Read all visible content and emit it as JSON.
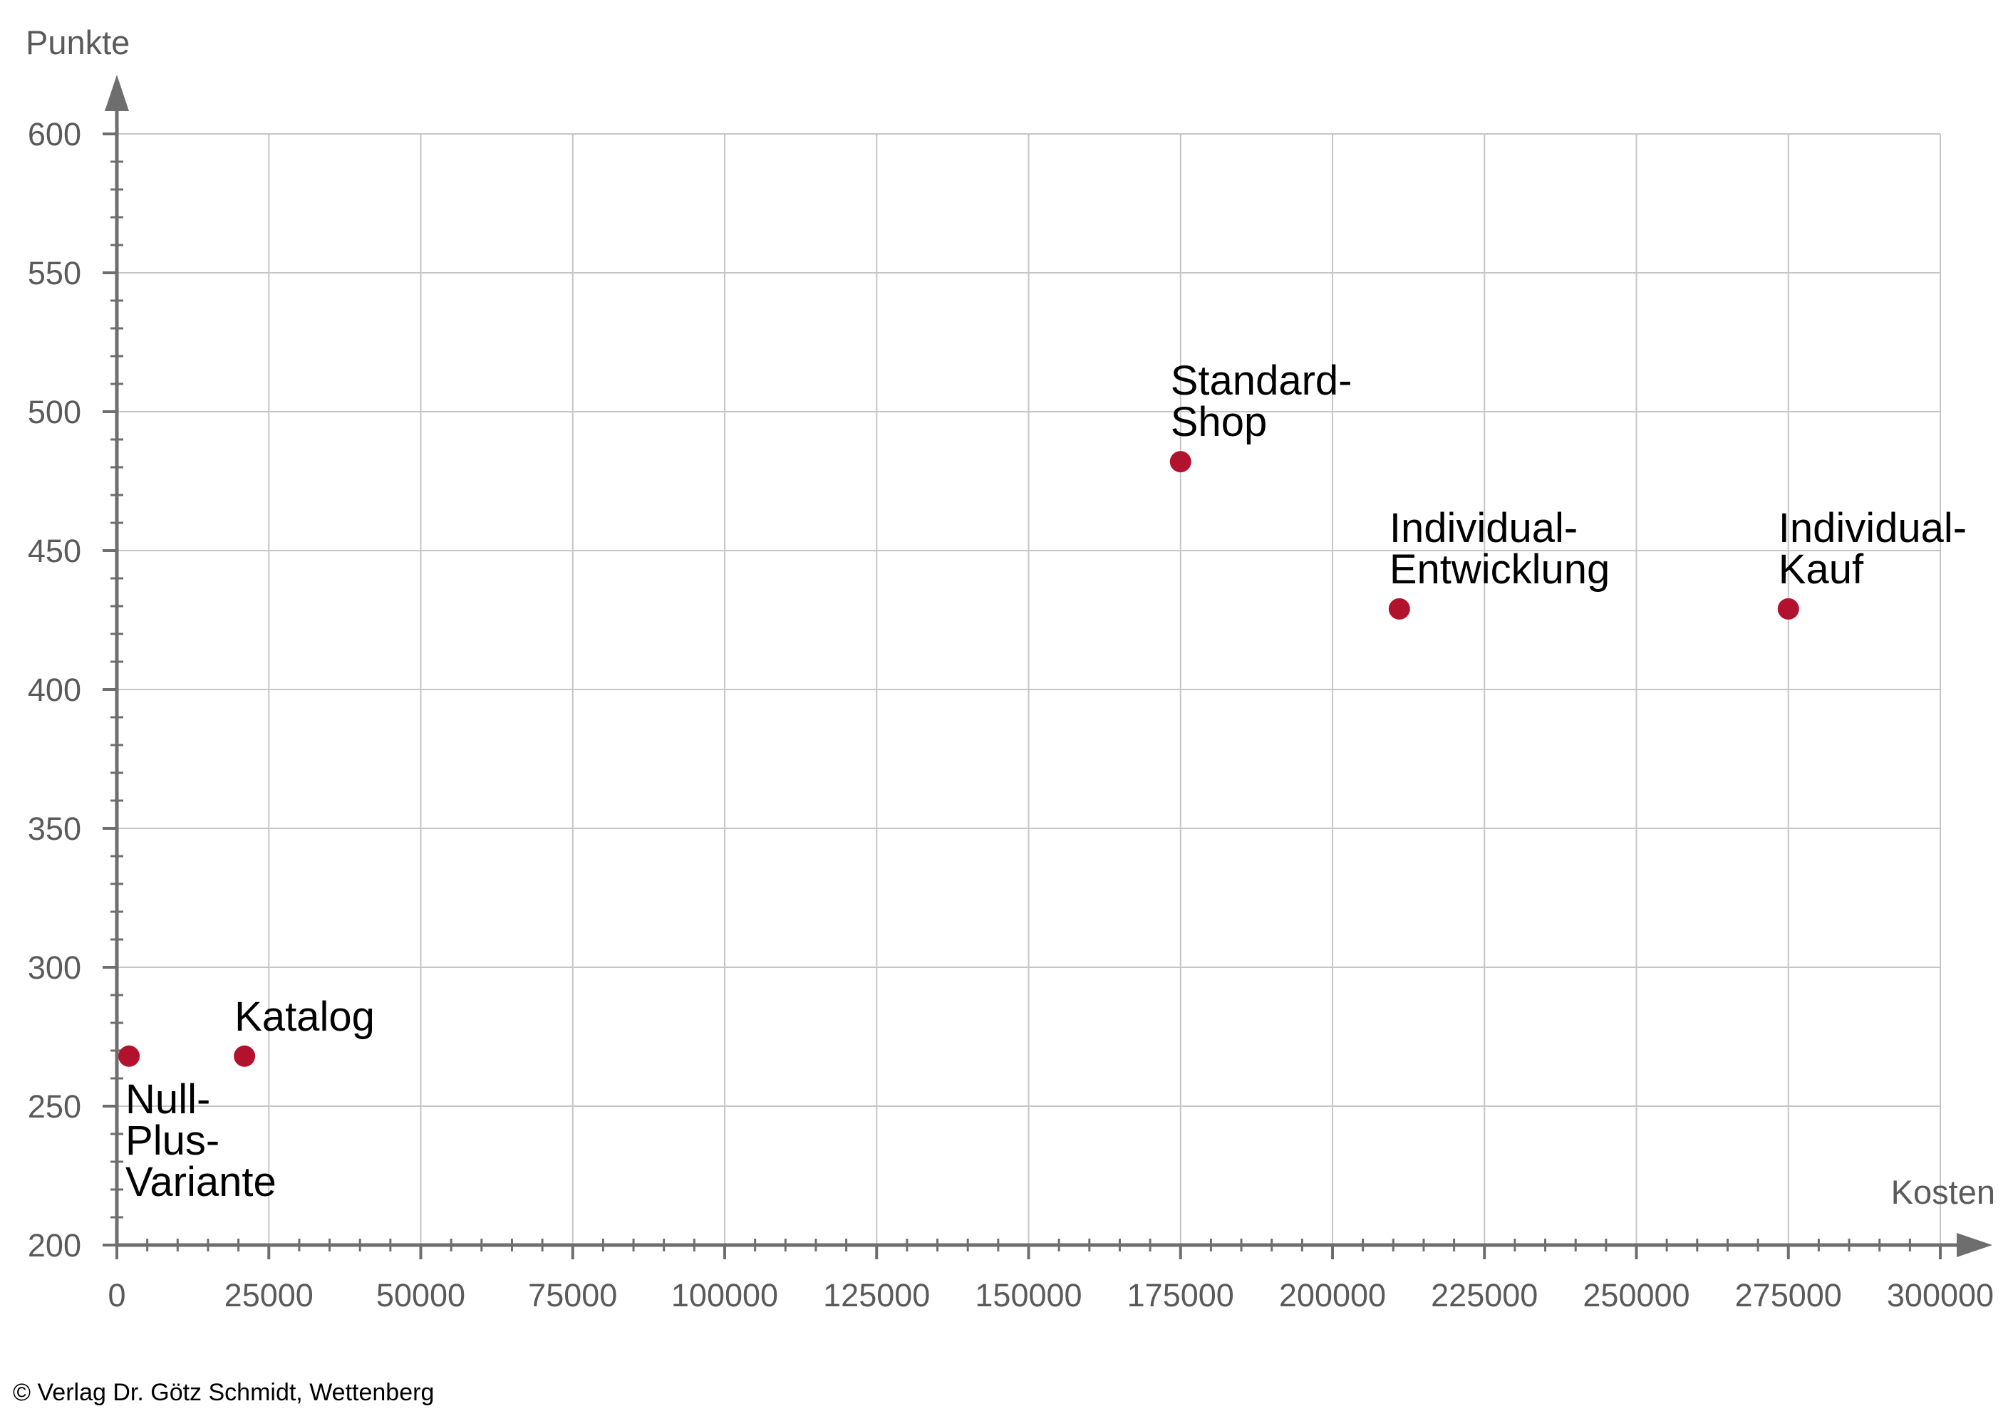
{
  "chart_data": {
    "type": "scatter",
    "xlabel": "Kosten",
    "ylabel": "Punkte",
    "xlim": [
      0,
      300000
    ],
    "ylim": [
      200,
      600
    ],
    "xticks": [
      0,
      25000,
      50000,
      75000,
      100000,
      125000,
      150000,
      175000,
      200000,
      225000,
      250000,
      275000,
      300000
    ],
    "yticks": [
      200,
      250,
      300,
      350,
      400,
      450,
      500,
      550,
      600
    ],
    "x_minor_tick_interval": 5000,
    "y_minor_tick_interval": 10,
    "grid": true,
    "points": [
      {
        "label_lines": [
          "Null-",
          "Plus-",
          "Variante"
        ],
        "label_placement": "below",
        "x": 2000,
        "y": 268
      },
      {
        "label_lines": [
          "Katalog"
        ],
        "label_placement": "above",
        "x": 21000,
        "y": 268
      },
      {
        "label_lines": [
          "Standard-",
          "Shop"
        ],
        "label_placement": "above",
        "x": 175000,
        "y": 482
      },
      {
        "label_lines": [
          "Individual-",
          "Entwicklung"
        ],
        "label_placement": "above",
        "x": 211000,
        "y": 429
      },
      {
        "label_lines": [
          "Individual-",
          "Kauf"
        ],
        "label_placement": "above",
        "x": 275000,
        "y": 429
      }
    ]
  },
  "colors": {
    "point": "#b3122e",
    "axis": "#6e6e6e",
    "grid": "#c6c6c6",
    "tick_label": "#5a5a5a",
    "point_label": "#000000",
    "copyright": "#000000"
  },
  "footer": {
    "copyright": "© Verlag Dr. Götz Schmidt, Wettenberg"
  }
}
